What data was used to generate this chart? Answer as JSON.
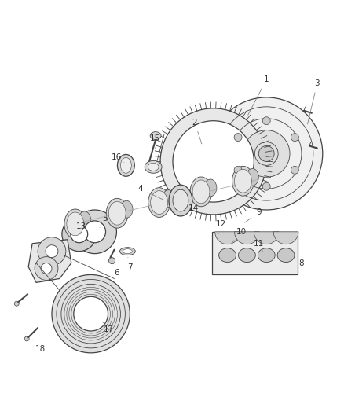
{
  "bg_color": "#ffffff",
  "line_color": "#444444",
  "text_color": "#333333",
  "label_fontsize": 7.5
}
